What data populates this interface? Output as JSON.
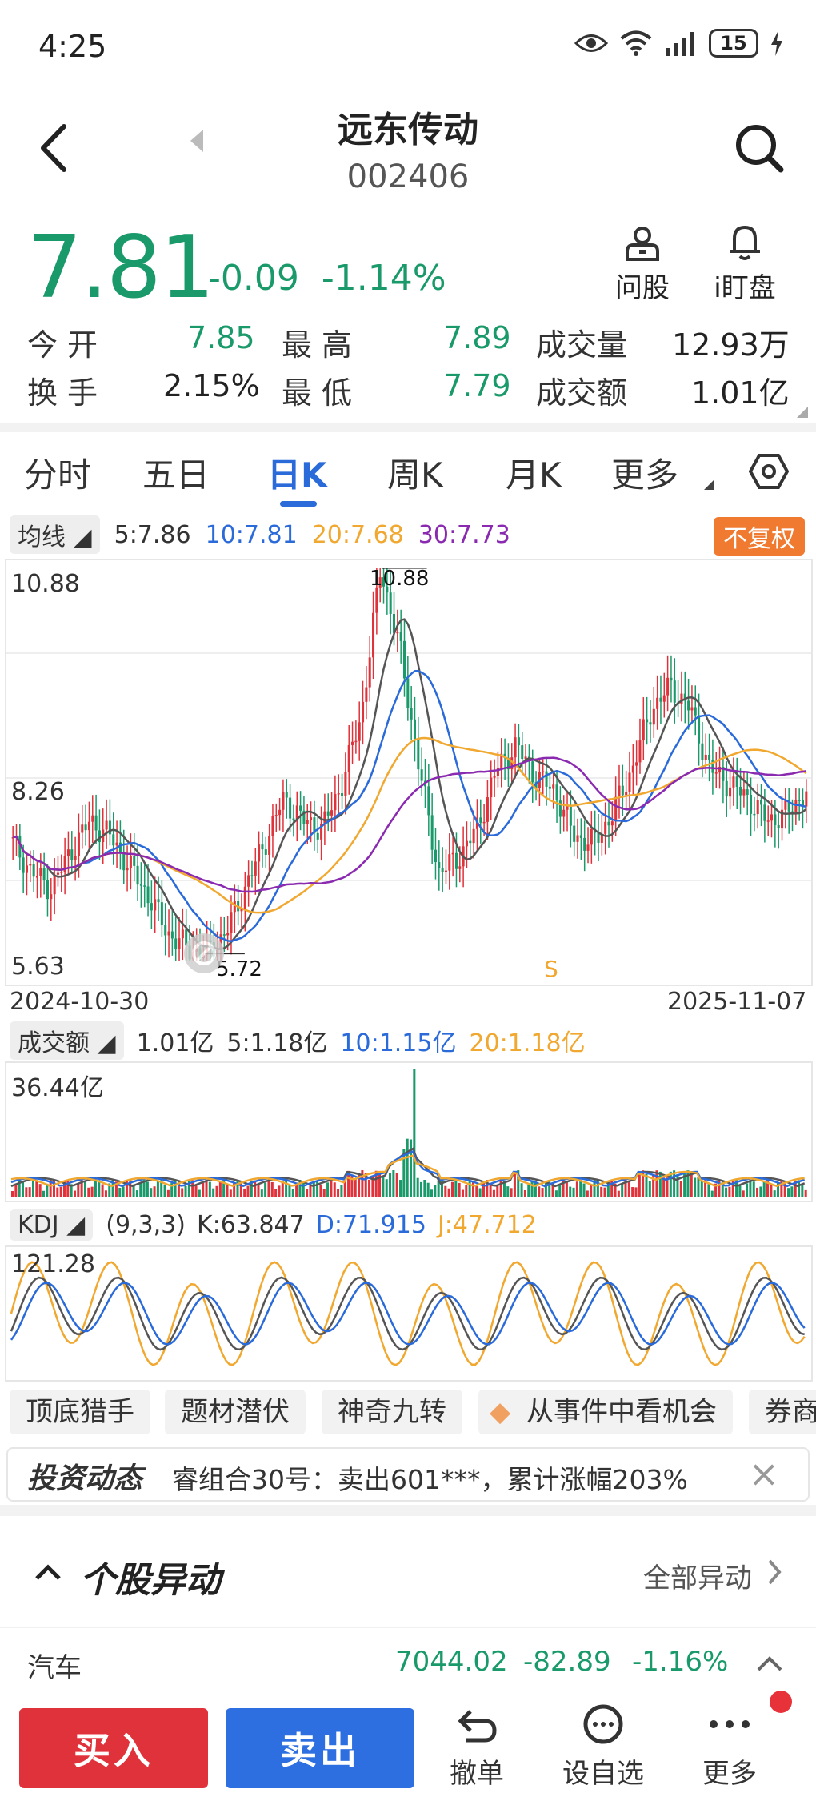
{
  "status_bar": {
    "time": "4:25",
    "battery": "15"
  },
  "header": {
    "title": "远东传动",
    "code": "002406"
  },
  "quote": {
    "price": "7.81",
    "change": "-0.09",
    "change_pct": "-1.14%",
    "actions": [
      "问股",
      "i盯盘"
    ],
    "stats": {
      "open_label": "今开",
      "open": "7.85",
      "high_label": "最高",
      "high": "7.89",
      "vol_label": "成交量",
      "vol": "12.93万",
      "turnover_label": "换手",
      "turnover": "2.15%",
      "low_label": "最低",
      "low": "7.79",
      "amount_label": "成交额",
      "amount": "1.01亿"
    }
  },
  "tabs": [
    "分时",
    "五日",
    "日K",
    "周K",
    "月K",
    "更多"
  ],
  "active_tab": "日K",
  "ma_legend": {
    "label": "均线",
    "ma5": "5:7.86",
    "ma10": "10:7.81",
    "ma20": "20:7.68",
    "ma30": "30:7.73",
    "fq_button": "不复权"
  },
  "colors": {
    "up": "#e0323a",
    "down": "#1a9a6a",
    "ma5": "#555555",
    "ma10": "#2a6ad9",
    "ma20": "#f0a830",
    "ma30": "#8a2ab0",
    "accent": "#2a6ad9"
  },
  "kline": {
    "y_top": "10.88",
    "y_mid": "8.26",
    "y_bottom": "5.63",
    "max_mark": "10.88",
    "min_mark": "5.72",
    "signal": "S",
    "date_start": "2024-10-30",
    "date_end": "2025-11-07"
  },
  "volume": {
    "label": "成交额",
    "value": "1.01亿",
    "ma5": "5:1.18亿",
    "ma10": "10:1.15亿",
    "ma20": "20:1.18亿",
    "y_top": "36.44亿"
  },
  "kdj": {
    "label": "KDJ",
    "params": "(9,3,3)",
    "k": "K:63.847",
    "d": "D:71.915",
    "j": "J:47.712",
    "y_top": "121.28"
  },
  "chart_data": [
    {
      "type": "candlestick",
      "x_range": [
        "2024-10-30",
        "2025-11-07"
      ],
      "ylim": [
        5.63,
        10.88
      ],
      "y_ticks": [
        "10.88",
        "8.26",
        "5.63"
      ],
      "close_approx": [
        7.2,
        6.8,
        6.6,
        7.1,
        7.5,
        7.3,
        6.9,
        6.5,
        6.0,
        5.8,
        5.72,
        6.0,
        6.6,
        7.2,
        7.8,
        7.5,
        7.4,
        8.0,
        8.9,
        10.88,
        9.8,
        8.2,
        6.8,
        7.0,
        7.4,
        8.2,
        8.5,
        8.1,
        7.9,
        7.3,
        7.2,
        7.6,
        8.2,
        9.0,
        9.3,
        9.0,
        8.2,
        8.0,
        7.8,
        7.5,
        7.6,
        7.9
      ],
      "max_label": "10.88",
      "min_label": "5.72",
      "series": [
        "5:7.86",
        "10:7.81",
        "20:7.68",
        "30:7.73"
      ]
    },
    {
      "type": "bar",
      "name": "成交额",
      "ylim_label": "36.44亿"
    },
    {
      "type": "line",
      "name": "KDJ",
      "ylim_label": "121.28",
      "series": [
        "K:63.847",
        "D:71.915",
        "J:47.712"
      ]
    }
  ],
  "chips": [
    "顶底猎手",
    "题材潜伏",
    "神奇九转",
    "从事件中看机会",
    "券商"
  ],
  "news": {
    "logo": "投资动态",
    "text": "睿组合30号：卖出601***，累计涨幅203%"
  },
  "section": {
    "title": "个股异动",
    "all": "全部异动"
  },
  "industry": {
    "name": "汽车",
    "value": "7044.02",
    "change": "-82.89",
    "pct": "-1.16%"
  },
  "bottom": {
    "buy": "买入",
    "sell": "卖出",
    "actions": [
      "撤单",
      "设自选",
      "更多"
    ]
  }
}
